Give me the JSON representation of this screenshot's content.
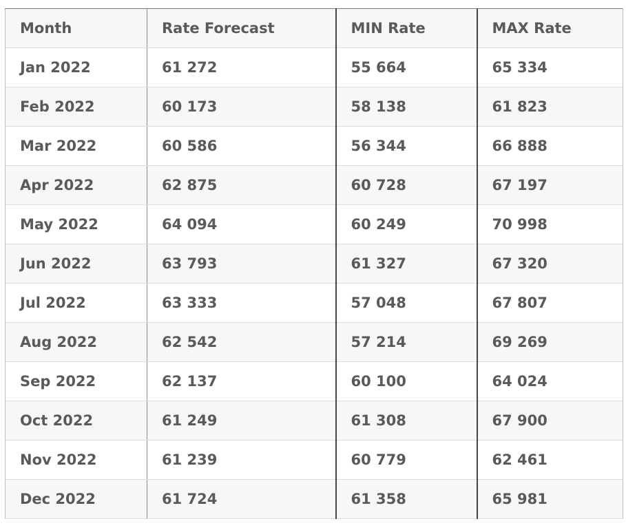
{
  "table": {
    "headers": {
      "month": "Month",
      "forecast": "Rate Forecast",
      "min": "MIN Rate",
      "max": "MAX Rate"
    },
    "rows": [
      {
        "month": "Jan 2022",
        "forecast": "61 272",
        "min": "55 664",
        "max": "65 334"
      },
      {
        "month": "Feb 2022",
        "forecast": "60 173",
        "min": "58 138",
        "max": "61 823"
      },
      {
        "month": "Mar 2022",
        "forecast": "60 586",
        "min": "56 344",
        "max": "66 888"
      },
      {
        "month": "Apr 2022",
        "forecast": "62 875",
        "min": "60 728",
        "max": "67 197"
      },
      {
        "month": "May 2022",
        "forecast": "64 094",
        "min": "60 249",
        "max": "70 998"
      },
      {
        "month": "Jun 2022",
        "forecast": "63 793",
        "min": "61 327",
        "max": "67 320"
      },
      {
        "month": "Jul 2022",
        "forecast": "63 333",
        "min": "57 048",
        "max": "67 807"
      },
      {
        "month": "Aug 2022",
        "forecast": "62 542",
        "min": "57 214",
        "max": "69 269"
      },
      {
        "month": "Sep 2022",
        "forecast": "62 137",
        "min": "60 100",
        "max": "64 024"
      },
      {
        "month": "Oct 2022",
        "forecast": "61 249",
        "min": "61 308",
        "max": "67 900"
      },
      {
        "month": "Nov 2022",
        "forecast": "61 239",
        "min": "60 779",
        "max": "62 461"
      },
      {
        "month": "Dec 2022",
        "forecast": "61 724",
        "min": "61 358",
        "max": "65 981"
      }
    ]
  }
}
